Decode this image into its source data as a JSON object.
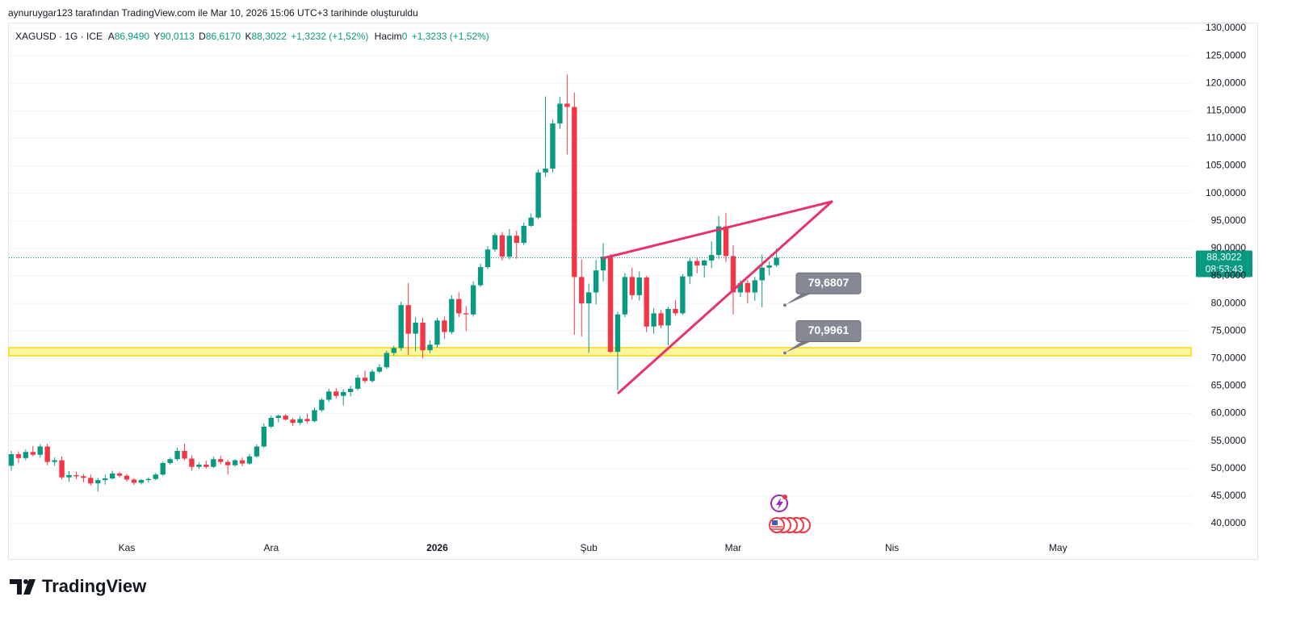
{
  "header": {
    "caption": "aynuruygar123 tarafından TradingView.com ile Mar 10, 2026 15:06 UTC+3 tarihinde oluşturuldu"
  },
  "legend": {
    "symbol": "XAGUSD · 1G · ICE",
    "open_label": "A",
    "open": "86,9490",
    "high_label": "Y",
    "high": "90,0113",
    "low_label": "D",
    "low": "86,6170",
    "close_label": "K",
    "close": "88,3022",
    "change": "+1,3232 (+1,52%)",
    "volume_label": "Hacim",
    "volume": "0",
    "volume_change": "+1,3233 (+1,52%)"
  },
  "footer": {
    "brand": "TradingView"
  },
  "chart_data": {
    "type": "candlestick",
    "up_color": "#089981",
    "down_color": "#f23645",
    "grid": true,
    "categories": [
      null,
      null,
      null,
      null,
      null,
      null,
      null,
      null,
      null,
      null,
      null,
      null,
      null,
      null,
      null,
      null,
      "Kas",
      null,
      null,
      null,
      null,
      null,
      null,
      null,
      null,
      null,
      null,
      null,
      null,
      null,
      null,
      null,
      null,
      null,
      null,
      null,
      "Ara",
      null,
      null,
      null,
      null,
      null,
      null,
      null,
      null,
      null,
      null,
      null,
      null,
      null,
      null,
      null,
      null,
      null,
      null,
      null,
      null,
      null,
      null,
      "2026",
      null,
      null,
      null,
      null,
      null,
      null,
      null,
      null,
      null,
      null,
      null,
      null,
      null,
      null,
      null,
      null,
      null,
      null,
      null,
      null,
      "Şub",
      null,
      null,
      null,
      null,
      null,
      null,
      null,
      null,
      null,
      null,
      null,
      null,
      null,
      null,
      null,
      null,
      null,
      null,
      null,
      "Mar",
      null,
      null,
      null,
      null,
      null,
      null,
      null,
      null,
      null,
      null,
      null,
      null,
      null,
      null,
      null,
      null,
      null,
      null,
      null,
      null,
      null,
      "Nis",
      null,
      null,
      null,
      null,
      null,
      null,
      null,
      null,
      null,
      null,
      null,
      null,
      null,
      null,
      null,
      null,
      null,
      null,
      null,
      null,
      null,
      null,
      "May",
      null,
      null,
      null,
      null,
      null,
      null,
      null,
      null,
      null,
      null,
      null,
      null,
      null,
      null,
      null,
      null,
      null,
      null
    ],
    "open": [
      50.5,
      52.6,
      51.9,
      53.0,
      52.5,
      54.0,
      51.2,
      51.5,
      48.4,
      48.8,
      48.6,
      48.3,
      47.3,
      47.9,
      48.2,
      49.1,
      48.7,
      48.0,
      47.4,
      47.9,
      48.1,
      48.9,
      51.0,
      51.7,
      53.2,
      51.8,
      50.3,
      50.7,
      50.3,
      51.7,
      51.2,
      50.6,
      51.5,
      50.9,
      52.2,
      54.0,
      57.6,
      59.2,
      59.6,
      58.9,
      58.3,
      59.0,
      58.6,
      60.6,
      62.5,
      64.0,
      63.2,
      63.9,
      64.5,
      66.5,
      65.9,
      67.6,
      68.4,
      71.0,
      71.9,
      79.7,
      74.5,
      76.5,
      71.5,
      72.5,
      76.9,
      74.8,
      80.8,
      78.2,
      78.0,
      83.3,
      86.6,
      89.8,
      92.4,
      88.5,
      92.3,
      91.0,
      94.1,
      95.6,
      103.8,
      104.5,
      112.7,
      116.3,
      115.7,
      84.8,
      80.0,
      82.0,
      86.0,
      88.5,
      71.2,
      78.0,
      84.8,
      81.5,
      84.7,
      75.8,
      78.2,
      76.0,
      79.0,
      78.2,
      84.9,
      87.7,
      86.9,
      87.8,
      88.8,
      94.0,
      88.6,
      82.0,
      83.7,
      82.0,
      84.2,
      86.5,
      86.949,
      null,
      null,
      null,
      null,
      null,
      null,
      null,
      null,
      null,
      null,
      null,
      null,
      null,
      null,
      null,
      null,
      null,
      null,
      null,
      null,
      null,
      null,
      null,
      null,
      null,
      null,
      null,
      null,
      null,
      null,
      null,
      null,
      null,
      null,
      null,
      null,
      null,
      null,
      null,
      null,
      null,
      null,
      null,
      null,
      null,
      null,
      null,
      null,
      null,
      null,
      null,
      null,
      null,
      null,
      null,
      null,
      null
    ],
    "high": [
      53.2,
      53.1,
      53.5,
      54.1,
      54.4,
      54.5,
      52.0,
      52.2,
      49.5,
      49.4,
      49.0,
      48.9,
      48.3,
      48.9,
      49.6,
      49.4,
      49.0,
      48.2,
      48.1,
      48.4,
      49.2,
      51.3,
      52.0,
      53.8,
      54.5,
      52.4,
      51.1,
      51.4,
      52.2,
      52.3,
      51.6,
      51.7,
      52.0,
      52.6,
      54.4,
      58.2,
      59.6,
      59.8,
      59.9,
      59.2,
      59.5,
      60.0,
      61.1,
      62.8,
      64.5,
      64.6,
      64.4,
      65.0,
      67.0,
      67.8,
      68.0,
      69.0,
      71.4,
      72.3,
      80.3,
      83.7,
      77.5,
      77.4,
      73.3,
      77.4,
      77.6,
      81.5,
      82.0,
      79.5,
      84.0,
      87.2,
      90.4,
      92.8,
      93.0,
      93.5,
      93.2,
      94.7,
      96.3,
      104.3,
      117.6,
      113.4,
      117.5,
      121.6,
      118.3,
      88.0,
      83.6,
      87.9,
      91.0,
      89.0,
      78.5,
      85.5,
      86.5,
      85.8,
      85.0,
      79.1,
      78.8,
      79.4,
      80.6,
      85.3,
      88.3,
      88.4,
      88.0,
      91.3,
      95.9,
      96.4,
      90.6,
      84.2,
      84.3,
      84.8,
      88.9,
      87.6,
      90.0113,
      null,
      null,
      null,
      null,
      null,
      null,
      null,
      null,
      null,
      null,
      null,
      null,
      null,
      null,
      null,
      null,
      null,
      null,
      null,
      null,
      null,
      null,
      null,
      null,
      null,
      null,
      null,
      null,
      null,
      null,
      null,
      null,
      null,
      null,
      null,
      null,
      null,
      null,
      null,
      null,
      null,
      null,
      null,
      null,
      null,
      null,
      null,
      null,
      null,
      null,
      null,
      null,
      null,
      null,
      null,
      null,
      null
    ],
    "low": [
      49.6,
      51.0,
      51.5,
      52.2,
      52.0,
      50.6,
      50.5,
      48.0,
      47.6,
      48.1,
      47.5,
      46.9,
      45.8,
      47.1,
      48.0,
      48.4,
      47.6,
      47.0,
      47.1,
      47.5,
      47.9,
      48.7,
      50.7,
      51.4,
      51.5,
      49.6,
      49.9,
      50.0,
      50.1,
      50.8,
      48.9,
      50.3,
      50.4,
      50.7,
      52.0,
      53.8,
      57.3,
      58.4,
      58.7,
      57.7,
      57.9,
      58.2,
      58.4,
      60.3,
      62.1,
      62.7,
      61.5,
      63.1,
      64.2,
      65.5,
      65.6,
      67.3,
      68.1,
      70.5,
      71.4,
      70.6,
      71.3,
      70.0,
      71.0,
      72.0,
      73.5,
      74.4,
      77.5,
      75.0,
      77.6,
      83.0,
      86.2,
      89.4,
      87.8,
      88.0,
      88.1,
      90.6,
      93.9,
      95.3,
      103.0,
      103.8,
      111.7,
      107.1,
      74.3,
      74.0,
      71.0,
      79.8,
      84.0,
      71.0,
      64.2,
      77.5,
      80.7,
      80.5,
      74.8,
      74.5,
      75.5,
      72.4,
      77.8,
      77.9,
      83.5,
      85.5,
      84.7,
      86.4,
      88.1,
      87.5,
      78.0,
      81.2,
      80.0,
      80.5,
      79.3,
      85.1,
      86.617,
      null,
      null,
      null,
      null,
      null,
      null,
      null,
      null,
      null,
      null,
      null,
      null,
      null,
      null,
      null,
      null,
      null,
      null,
      null,
      null,
      null,
      null,
      null,
      null,
      null,
      null,
      null,
      null,
      null,
      null,
      null,
      null,
      null,
      null,
      null,
      null,
      null,
      null,
      null,
      null,
      null,
      null,
      null,
      null,
      null,
      null,
      null,
      null,
      null,
      null,
      null,
      null,
      null,
      null,
      null,
      null,
      null
    ],
    "close": [
      52.6,
      51.9,
      53.0,
      52.5,
      54.0,
      51.2,
      51.5,
      48.4,
      48.8,
      48.6,
      48.3,
      47.3,
      47.9,
      48.2,
      49.1,
      48.7,
      48.0,
      47.4,
      47.9,
      48.1,
      48.9,
      51.0,
      51.7,
      53.2,
      51.8,
      50.3,
      50.7,
      50.3,
      51.7,
      51.2,
      50.6,
      51.5,
      50.9,
      52.2,
      54.0,
      57.6,
      59.2,
      59.6,
      58.9,
      58.3,
      59.0,
      58.6,
      60.6,
      62.5,
      64.0,
      63.2,
      63.9,
      64.5,
      66.5,
      65.9,
      67.6,
      68.4,
      71.0,
      71.9,
      79.7,
      74.5,
      76.5,
      71.5,
      72.5,
      76.9,
      74.8,
      80.8,
      78.2,
      78.0,
      83.3,
      86.6,
      89.8,
      92.4,
      88.5,
      92.3,
      91.0,
      94.1,
      95.6,
      103.8,
      104.5,
      112.7,
      116.3,
      115.7,
      84.8,
      80.0,
      82.0,
      86.0,
      88.5,
      71.2,
      78.0,
      84.8,
      81.5,
      84.7,
      75.8,
      78.2,
      76.0,
      79.0,
      78.2,
      84.9,
      87.7,
      86.9,
      87.8,
      88.8,
      94.0,
      88.6,
      82.0,
      83.7,
      82.0,
      84.2,
      86.5,
      86.9,
      88.3022,
      null,
      null,
      null,
      null,
      null,
      null,
      null,
      null,
      null,
      null,
      null,
      null,
      null,
      null,
      null,
      null,
      null,
      null,
      null,
      null,
      null,
      null,
      null,
      null,
      null,
      null,
      null,
      null,
      null,
      null,
      null,
      null,
      null,
      null,
      null,
      null,
      null,
      null,
      null,
      null,
      null,
      null,
      null,
      null,
      null,
      null,
      null,
      null,
      null,
      null,
      null,
      null,
      null,
      null,
      null,
      null,
      null
    ],
    "ylim": [
      33.55,
      131.03
    ],
    "yticks": [
      {
        "value": 40,
        "label": "40,0000"
      },
      {
        "value": 45,
        "label": "45,0000"
      },
      {
        "value": 50,
        "label": "50,0000"
      },
      {
        "value": 55,
        "label": "55,0000"
      },
      {
        "value": 60,
        "label": "60,0000"
      },
      {
        "value": 65,
        "label": "65,0000"
      },
      {
        "value": 70,
        "label": "70,0000"
      },
      {
        "value": 75,
        "label": "75,0000"
      },
      {
        "value": 80,
        "label": "80,0000"
      },
      {
        "value": 85,
        "label": "85,0000"
      },
      {
        "value": 90,
        "label": "90,0000"
      },
      {
        "value": 95,
        "label": "95,0000"
      },
      {
        "value": 100,
        "label": "100,0000"
      },
      {
        "value": 105,
        "label": "105,0000"
      },
      {
        "value": 110,
        "label": "110,0000"
      },
      {
        "value": 115,
        "label": "115,0000"
      },
      {
        "value": 120,
        "label": "120,0000"
      },
      {
        "value": 125,
        "label": "125,0000"
      },
      {
        "value": 130,
        "label": "130,0000"
      }
    ],
    "last_price": {
      "value": 88.3022,
      "label": "88,3022"
    },
    "countdown": "08:53:43",
    "price_markers": [
      {
        "value": 79.6807,
        "label": "79,6807"
      },
      {
        "value": 70.9961,
        "label": "70,9961"
      }
    ]
  }
}
